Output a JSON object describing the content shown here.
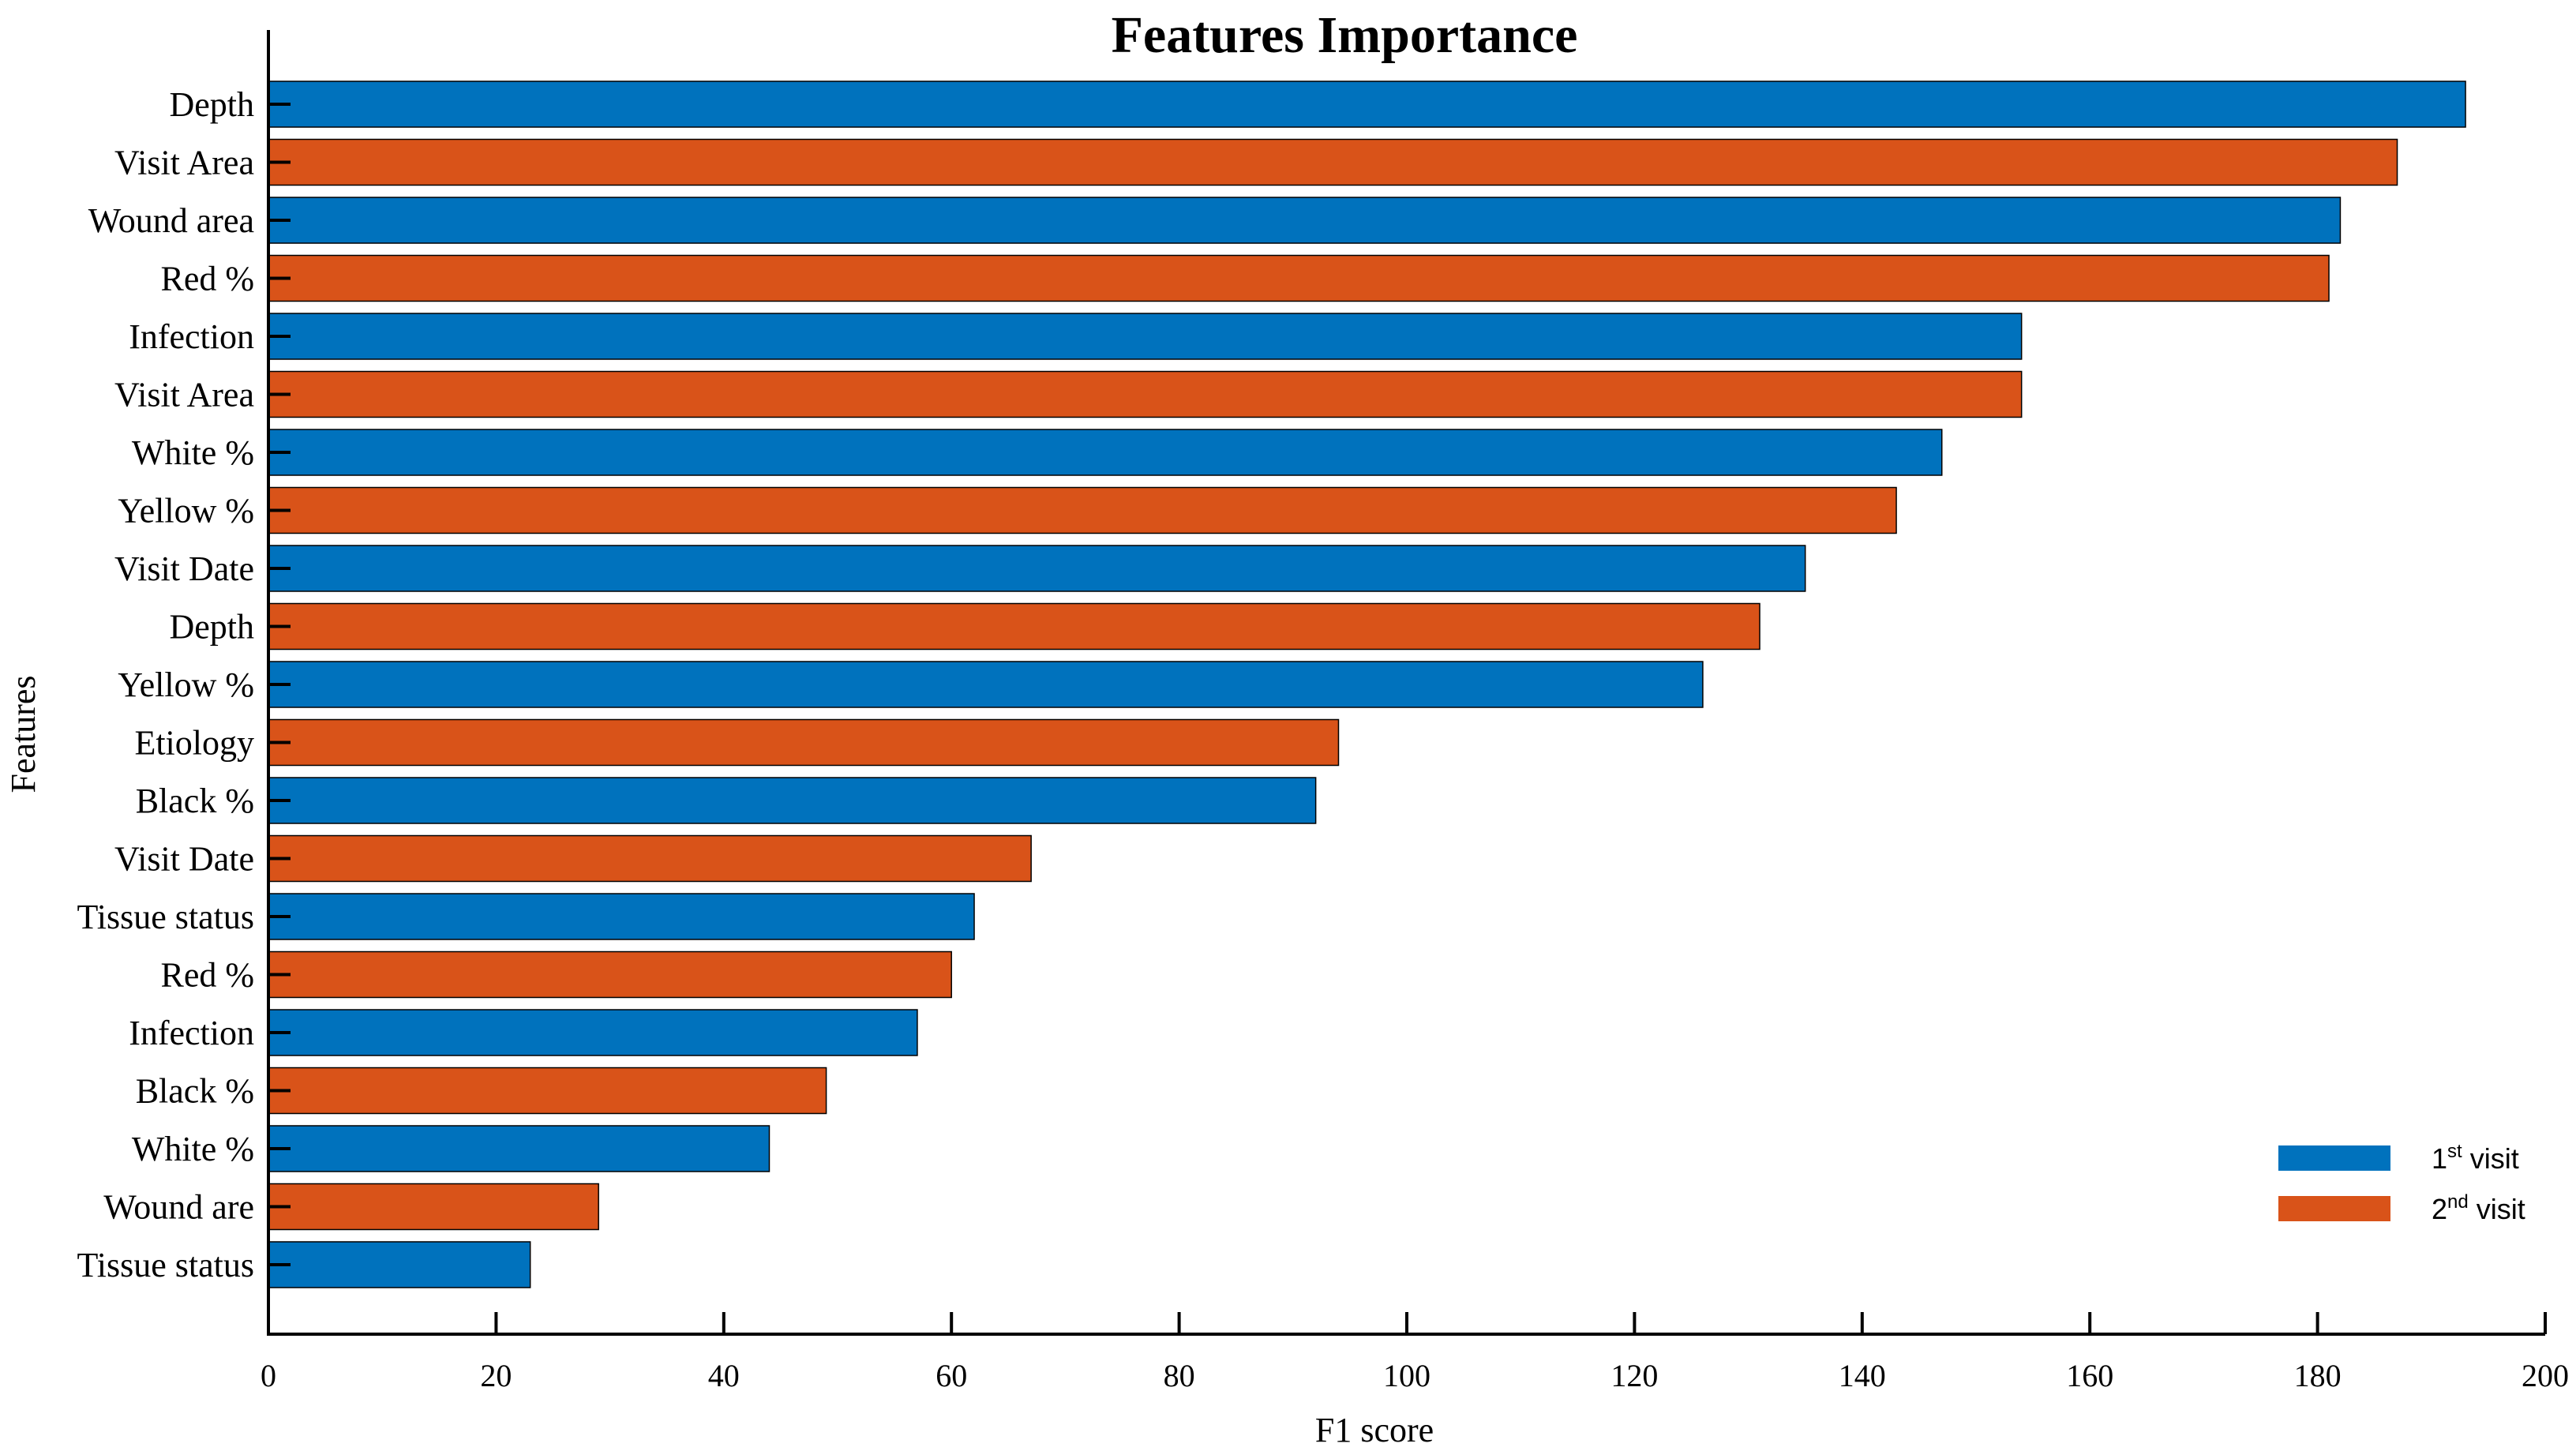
{
  "chart_data": {
    "type": "bar",
    "orientation": "horizontal",
    "title": "Features Importance",
    "xlabel": "F1 score",
    "ylabel": "Features",
    "xlim": [
      0,
      200
    ],
    "xticks": [
      0,
      20,
      40,
      60,
      80,
      100,
      120,
      140,
      160,
      180,
      200
    ],
    "grid": false,
    "legend_position": "bottom-right",
    "legend": [
      {
        "base": "1",
        "sup": "st",
        "rest": " visit",
        "color": "#0072BD"
      },
      {
        "base": "2",
        "sup": "nd",
        "rest": " visit",
        "color": "#D95319"
      }
    ],
    "bars": [
      {
        "label": "Depth",
        "value": 193,
        "series": 0
      },
      {
        "label": "Visit Area",
        "value": 187,
        "series": 1
      },
      {
        "label": "Wound area",
        "value": 182,
        "series": 0
      },
      {
        "label": "Red %",
        "value": 181,
        "series": 1
      },
      {
        "label": "Infection",
        "value": 154,
        "series": 0
      },
      {
        "label": "Visit Area",
        "value": 154,
        "series": 1
      },
      {
        "label": "White %",
        "value": 147,
        "series": 0
      },
      {
        "label": "Yellow %",
        "value": 143,
        "series": 1
      },
      {
        "label": "Visit Date",
        "value": 135,
        "series": 0
      },
      {
        "label": "Depth",
        "value": 131,
        "series": 1
      },
      {
        "label": "Yellow %",
        "value": 126,
        "series": 0
      },
      {
        "label": "Etiology",
        "value": 94,
        "series": 1
      },
      {
        "label": "Black %",
        "value": 92,
        "series": 0
      },
      {
        "label": "Visit Date",
        "value": 67,
        "series": 1
      },
      {
        "label": "Tissue status",
        "value": 62,
        "series": 0
      },
      {
        "label": "Red %",
        "value": 60,
        "series": 1
      },
      {
        "label": "Infection",
        "value": 57,
        "series": 0
      },
      {
        "label": "Black %",
        "value": 49,
        "series": 1
      },
      {
        "label": "White %",
        "value": 44,
        "series": 0
      },
      {
        "label": "Wound are",
        "value": 29,
        "series": 1
      },
      {
        "label": "Tissue status",
        "value": 23,
        "series": 0
      }
    ]
  }
}
